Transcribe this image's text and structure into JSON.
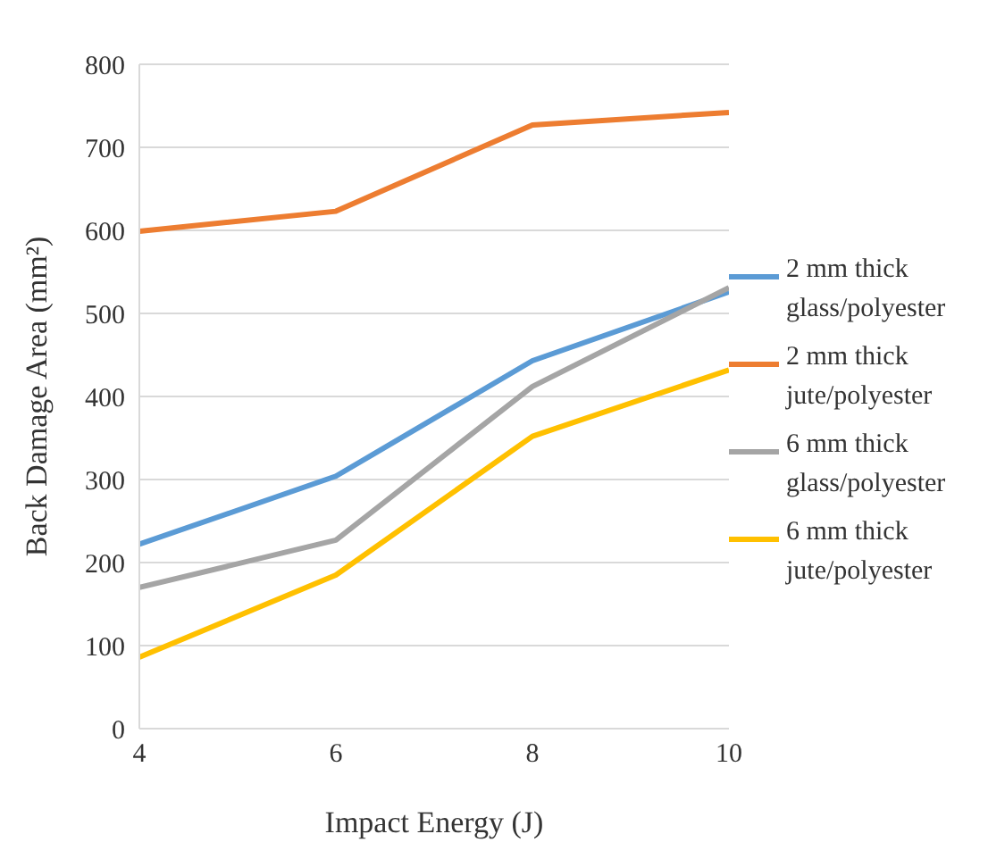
{
  "chart_data": {
    "type": "line",
    "xlabel": "Impact Energy (J)",
    "ylabel": "Back Damage Area (mm²)",
    "x": [
      4,
      6,
      8,
      10
    ],
    "xlim": [
      4,
      10
    ],
    "xticks": [
      4,
      6,
      8,
      10
    ],
    "ylim": [
      0,
      800
    ],
    "yticks": [
      0,
      100,
      200,
      300,
      400,
      500,
      600,
      700,
      800
    ],
    "grid": "y",
    "legend": "right",
    "marker": "none",
    "line_style": "solid",
    "series": [
      {
        "name": "2 mm thick glass/polyester",
        "color": "#5b9bd5",
        "values": [
          222,
          304,
          443,
          526
        ]
      },
      {
        "name": "2 mm thick jute/polyester",
        "color": "#ed7d31",
        "values": [
          599,
          623,
          727,
          742
        ]
      },
      {
        "name": "6 mm thick glass/polyester",
        "color": "#a5a5a5",
        "values": [
          170,
          227,
          412,
          531
        ]
      },
      {
        "name": "6 mm thick jute/polyester",
        "color": "#ffc000",
        "values": [
          86,
          185,
          352,
          432
        ]
      }
    ]
  }
}
